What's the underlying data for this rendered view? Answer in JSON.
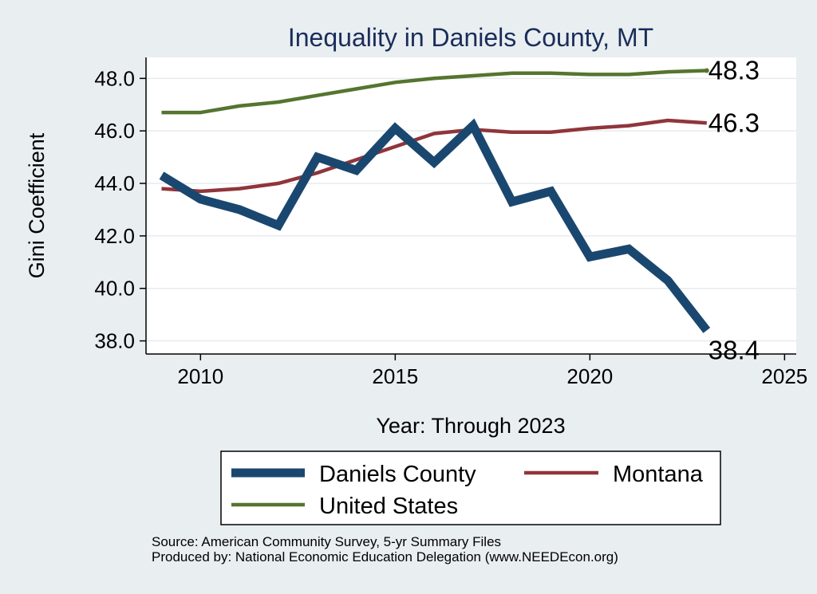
{
  "chart_data": {
    "type": "line",
    "title": "Inequality in Daniels County, MT",
    "xlabel": "Year: Through 2023",
    "ylabel": "Gini Coefficient",
    "xlim": [
      2008.6,
      2025.3
    ],
    "ylim": [
      37.5,
      48.8
    ],
    "xticks": [
      2010,
      2015,
      2020,
      2025
    ],
    "yticks": [
      38.0,
      40.0,
      42.0,
      44.0,
      46.0,
      48.0
    ],
    "ytick_labels": [
      "38.0",
      "40.0",
      "42.0",
      "44.0",
      "46.0",
      "48.0"
    ],
    "grid": true,
    "x": [
      2009,
      2010,
      2011,
      2012,
      2013,
      2014,
      2015,
      2016,
      2017,
      2018,
      2019,
      2020,
      2021,
      2022,
      2023
    ],
    "series": [
      {
        "name": "Daniels County",
        "color": "#1a476f",
        "values": [
          44.3,
          43.4,
          43.0,
          42.4,
          45.0,
          44.5,
          46.1,
          44.8,
          46.2,
          43.3,
          43.7,
          41.2,
          41.5,
          40.3,
          38.4
        ],
        "end_label": "38.4"
      },
      {
        "name": "Montana",
        "color": "#90353b",
        "values": [
          43.8,
          43.7,
          43.8,
          44.0,
          44.4,
          44.9,
          45.4,
          45.9,
          46.05,
          45.95,
          45.95,
          46.1,
          46.2,
          46.4,
          46.3
        ],
        "end_label": "46.3"
      },
      {
        "name": "United States",
        "color": "#55752f",
        "values": [
          46.7,
          46.7,
          46.95,
          47.1,
          47.35,
          47.6,
          47.85,
          48.0,
          48.1,
          48.2,
          48.2,
          48.15,
          48.15,
          48.25,
          48.3
        ],
        "end_label": "48.3"
      }
    ],
    "legend_position": "bottom"
  },
  "footer": {
    "source": "Source: American Community Survey, 5-yr Summary Files",
    "producer": "Produced by: National Economic Education Delegation (www.NEEDEcon.org)"
  }
}
